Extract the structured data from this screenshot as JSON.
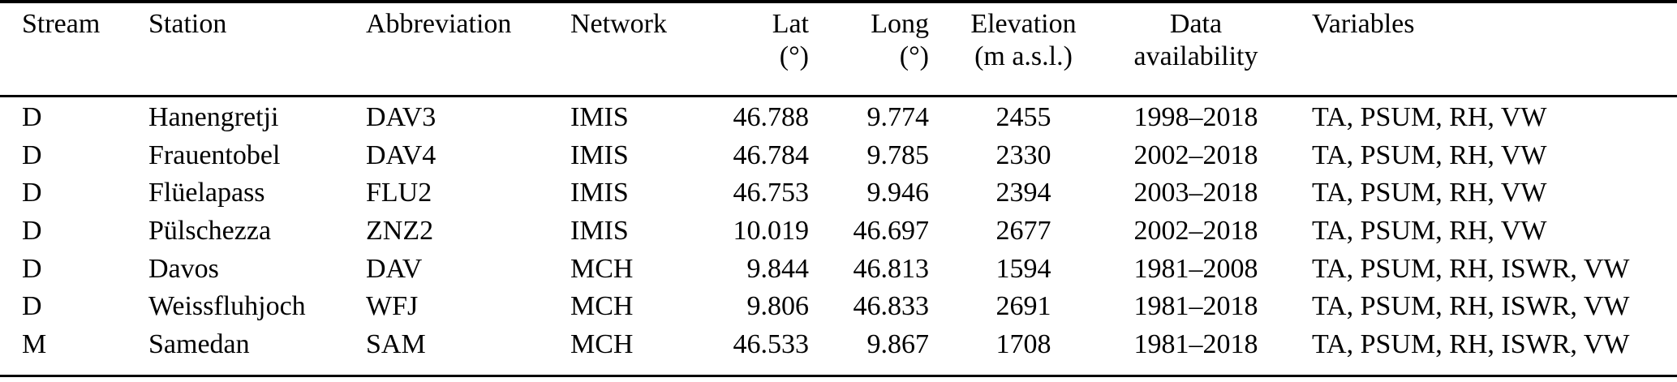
{
  "table": {
    "columns": [
      {
        "key": "stream",
        "label": "Stream",
        "sub": "",
        "align": "left"
      },
      {
        "key": "station",
        "label": "Station",
        "sub": "",
        "align": "left"
      },
      {
        "key": "abbreviation",
        "label": "Abbreviation",
        "sub": "",
        "align": "left"
      },
      {
        "key": "network",
        "label": "Network",
        "sub": "",
        "align": "left"
      },
      {
        "key": "lat",
        "label": "Lat",
        "sub": "(°)",
        "align": "right"
      },
      {
        "key": "long",
        "label": "Long",
        "sub": "(°)",
        "align": "right"
      },
      {
        "key": "elevation",
        "label": "Elevation",
        "sub": "(m a.s.l.)",
        "align": "center"
      },
      {
        "key": "data-availability",
        "label": "Data",
        "sub": "availability",
        "align": "center"
      },
      {
        "key": "variables",
        "label": "Variables",
        "sub": "",
        "align": "left"
      }
    ],
    "rows": [
      [
        "D",
        "Hanengretji",
        "DAV3",
        "IMIS",
        "46.788",
        "9.774",
        "2455",
        "1998–2018",
        "TA, PSUM, RH, VW"
      ],
      [
        "D",
        "Frauentobel",
        "DAV4",
        "IMIS",
        "46.784",
        "9.785",
        "2330",
        "2002–2018",
        "TA, PSUM, RH, VW"
      ],
      [
        "D",
        "Flüelapass",
        "FLU2",
        "IMIS",
        "46.753",
        "9.946",
        "2394",
        "2003–2018",
        "TA, PSUM, RH, VW"
      ],
      [
        "D",
        "Pülschezza",
        "ZNZ2",
        "IMIS",
        "10.019",
        "46.697",
        "2677",
        "2002–2018",
        "TA, PSUM, RH, VW"
      ],
      [
        "D",
        "Davos",
        "DAV",
        "MCH",
        "9.844",
        "46.813",
        "1594",
        "1981–2008",
        "TA, PSUM, RH, ISWR, VW"
      ],
      [
        "D",
        "Weissfluhjoch",
        "WFJ",
        "MCH",
        "9.806",
        "46.833",
        "2691",
        "1981–2018",
        "TA, PSUM, RH, ISWR, VW"
      ],
      [
        "M",
        "Samedan",
        "SAM",
        "MCH",
        "46.533",
        "9.867",
        "1708",
        "1981–2018",
        "TA, PSUM, RH, ISWR, VW"
      ]
    ],
    "colors": {
      "text": "#000000",
      "background": "#ffffff",
      "rule": "#000000"
    }
  }
}
